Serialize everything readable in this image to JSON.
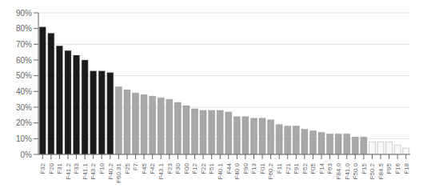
{
  "chart_data": {
    "type": "bar",
    "categories": [
      "F32",
      "F20",
      "F31",
      "F41.2",
      "F33",
      "F41.1",
      "F43.2",
      "F10",
      "F40.2",
      "F60.31",
      "F25",
      "F7",
      "F45",
      "F42",
      "F43.1",
      "F23",
      "F30",
      "F00",
      "F12",
      "F22",
      "F51",
      "F40.1",
      "F44",
      "F40.0",
      "F90",
      "F13",
      "F01",
      "F60.2",
      "F11",
      "F21",
      "F91",
      "F52",
      "F05",
      "F14",
      "F63",
      "F84.0",
      "F41.0",
      "F50.0",
      "F15",
      "F50.2",
      "F84.5",
      "F95",
      "F16",
      "F18"
    ],
    "values": [
      81,
      77,
      69,
      66,
      63,
      60,
      53,
      53,
      52,
      43,
      41,
      39,
      38,
      37,
      36,
      35,
      33,
      31,
      29,
      28,
      28,
      28,
      27,
      24,
      24,
      23,
      23,
      22,
      19,
      18,
      18,
      16,
      15,
      14,
      13,
      13,
      13,
      11,
      11,
      8,
      8,
      8,
      6,
      4
    ],
    "colors": [
      "#1a1a1a",
      "#1a1a1a",
      "#1a1a1a",
      "#1a1a1a",
      "#1a1a1a",
      "#1a1a1a",
      "#1a1a1a",
      "#1a1a1a",
      "#1a1a1a",
      "#a8a8a8",
      "#a8a8a8",
      "#a8a8a8",
      "#a8a8a8",
      "#a8a8a8",
      "#a8a8a8",
      "#a8a8a8",
      "#a8a8a8",
      "#a8a8a8",
      "#a8a8a8",
      "#a8a8a8",
      "#a8a8a8",
      "#a8a8a8",
      "#a8a8a8",
      "#a8a8a8",
      "#a8a8a8",
      "#a8a8a8",
      "#a8a8a8",
      "#a8a8a8",
      "#a8a8a8",
      "#a8a8a8",
      "#a8a8a8",
      "#a8a8a8",
      "#a8a8a8",
      "#a8a8a8",
      "#a8a8a8",
      "#a8a8a8",
      "#a8a8a8",
      "#a8a8a8",
      "#a8a8a8",
      "#f8f8f8",
      "#f8f8f8",
      "#f8f8f8",
      "#f8f8f8",
      "#f8f8f8"
    ],
    "ylim": [
      0,
      90
    ],
    "yticks": [
      {
        "value": 0,
        "label": "0%"
      },
      {
        "value": 10,
        "label": "10%"
      },
      {
        "value": 20,
        "label": "20%"
      },
      {
        "value": 30,
        "label": "30%"
      },
      {
        "value": 40,
        "label": "40%"
      },
      {
        "value": 50,
        "label": "50%"
      },
      {
        "value": 60,
        "label": "60%"
      },
      {
        "value": 70,
        "label": "70%"
      },
      {
        "value": 80,
        "label": "80%"
      },
      {
        "value": 90,
        "label": "90%"
      }
    ],
    "grid": true
  }
}
